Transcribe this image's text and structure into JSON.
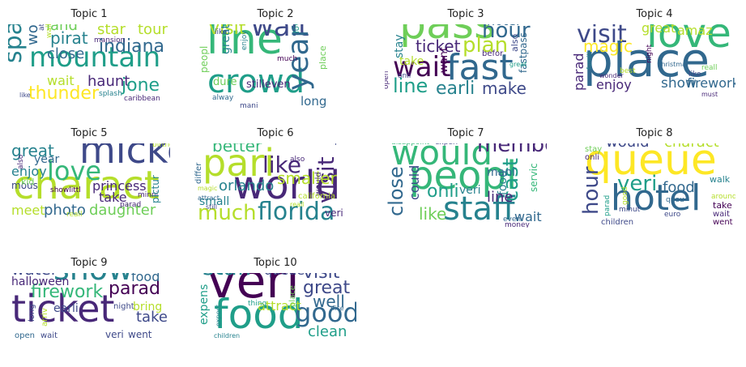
{
  "chart_data": {
    "type": "wordcloud",
    "palette": [
      "#440154",
      "#482878",
      "#3e4989",
      "#31688e",
      "#26828e",
      "#1f9e89",
      "#35b779",
      "#6ece58",
      "#b5de2b",
      "#fde725"
    ],
    "panels": [
      {
        "title": "Topic 1",
        "words": [
          {
            "text": "mountain",
            "color": "#1f9e89"
          },
          {
            "text": "space",
            "color": "#26828e"
          },
          {
            "text": "indiana",
            "color": "#31688e"
          },
          {
            "text": "pirat",
            "color": "#26828e"
          },
          {
            "text": "close",
            "color": "#31688e"
          },
          {
            "text": "land",
            "color": "#6ece58"
          },
          {
            "text": "star",
            "color": "#b5de2b"
          },
          {
            "text": "tour",
            "color": "#b5de2b"
          },
          {
            "text": "world",
            "color": "#31688e"
          },
          {
            "text": "wait",
            "color": "#b5de2b"
          },
          {
            "text": "haunt",
            "color": "#482878"
          },
          {
            "text": "jone",
            "color": "#1f9e89"
          },
          {
            "text": "thunder",
            "color": "#fde725"
          },
          {
            "text": "attract",
            "color": "#3e4989"
          },
          {
            "text": "mansion",
            "color": "#482878"
          },
          {
            "text": "small",
            "color": "#6ece58"
          },
          {
            "text": "splash",
            "color": "#26828e"
          },
          {
            "text": "caribbean",
            "color": "#482878"
          },
          {
            "text": "like",
            "color": "#3e4989"
          },
          {
            "text": "walk",
            "color": "#b5de2b"
          }
        ]
      },
      {
        "title": "Topic 2",
        "words": [
          {
            "text": "line",
            "color": "#35b779"
          },
          {
            "text": "crowd",
            "color": "#1f9e89"
          },
          {
            "text": "wait",
            "color": "#3e4989"
          },
          {
            "text": "year",
            "color": "#31688e"
          },
          {
            "text": "visit",
            "color": "#b5de2b"
          },
          {
            "text": "great",
            "color": "#26828e"
          },
          {
            "text": "would",
            "color": "#b5de2b"
          },
          {
            "text": "went",
            "color": "#482878"
          },
          {
            "text": "love",
            "color": "#1f9e89"
          },
          {
            "text": "place",
            "color": "#6ece58"
          },
          {
            "text": "peopl",
            "color": "#6ece58"
          },
          {
            "text": "like",
            "color": "#3e4989"
          },
          {
            "text": "enjoy",
            "color": "#26828e"
          },
          {
            "text": "much",
            "color": "#440154"
          },
          {
            "text": "dure",
            "color": "#6ece58"
          },
          {
            "text": "stilleven",
            "color": "#482878"
          },
          {
            "text": "alway",
            "color": "#31688e"
          },
          {
            "text": "mani",
            "color": "#3e4989"
          },
          {
            "text": "long",
            "color": "#31688e"
          }
        ]
      },
      {
        "title": "Topic 3",
        "words": [
          {
            "text": "pass",
            "color": "#6ece58"
          },
          {
            "text": "fast",
            "color": "#31688e"
          },
          {
            "text": "wait",
            "color": "#440154"
          },
          {
            "text": "hour",
            "color": "#31688e"
          },
          {
            "text": "plan",
            "color": "#b5de2b"
          },
          {
            "text": "ticket",
            "color": "#482878"
          },
          {
            "text": "line",
            "color": "#1f9e89"
          },
          {
            "text": "earli",
            "color": "#26828e"
          },
          {
            "text": "make",
            "color": "#3e4989"
          },
          {
            "text": "hotel",
            "color": "#31688e"
          },
          {
            "text": "stay",
            "color": "#26828e"
          },
          {
            "text": "take",
            "color": "#b5de2b"
          },
          {
            "text": "want",
            "color": "#440154"
          },
          {
            "text": "befor",
            "color": "#482878"
          },
          {
            "text": "fastpass",
            "color": "#31688e"
          },
          {
            "text": "also",
            "color": "#3e4989"
          },
          {
            "text": "great",
            "color": "#1f9e89"
          },
          {
            "text": "onli",
            "color": "#3e4989"
          },
          {
            "text": "open",
            "color": "#482878"
          }
        ]
      },
      {
        "title": "Topic 4",
        "words": [
          {
            "text": "place",
            "color": "#31688e"
          },
          {
            "text": "love",
            "color": "#35b779"
          },
          {
            "text": "visit",
            "color": "#3e4989"
          },
          {
            "text": "amaz",
            "color": "#b5de2b"
          },
          {
            "text": "great",
            "color": "#b5de2b"
          },
          {
            "text": "magic",
            "color": "#fde725"
          },
          {
            "text": "parad",
            "color": "#482878"
          },
          {
            "text": "enjoy",
            "color": "#482878"
          },
          {
            "text": "show",
            "color": "#31688e"
          },
          {
            "text": "firework",
            "color": "#31688e"
          },
          {
            "text": "experi",
            "color": "#fde725"
          },
          {
            "text": "everi",
            "color": "#6ece58"
          },
          {
            "text": "famili",
            "color": "#26828e"
          },
          {
            "text": "christma",
            "color": "#31688e"
          },
          {
            "text": "night",
            "color": "#440154"
          },
          {
            "text": "reall",
            "color": "#6ece58"
          },
          {
            "text": "wonder",
            "color": "#482878"
          },
          {
            "text": "best",
            "color": "#b5de2b"
          },
          {
            "text": "like",
            "color": "#3e4989"
          },
          {
            "text": "must",
            "color": "#482878"
          }
        ]
      },
      {
        "title": "Topic 5",
        "words": [
          {
            "text": "charact",
            "color": "#b5de2b"
          },
          {
            "text": "mickey",
            "color": "#3e4989"
          },
          {
            "text": "love",
            "color": "#35b779"
          },
          {
            "text": "great",
            "color": "#26828e"
          },
          {
            "text": "year",
            "color": "#31688e"
          },
          {
            "text": "enjoy",
            "color": "#26828e"
          },
          {
            "text": "mous",
            "color": "#3e4989"
          },
          {
            "text": "princess",
            "color": "#482878"
          },
          {
            "text": "take",
            "color": "#482878"
          },
          {
            "text": "meet",
            "color": "#b5de2b"
          },
          {
            "text": "photo",
            "color": "#31688e"
          },
          {
            "text": "daughter",
            "color": "#6ece58"
          },
          {
            "text": "birthday",
            "color": "#b5de2b"
          },
          {
            "text": "showlittl",
            "color": "#440154"
          },
          {
            "text": "minni",
            "color": "#482878"
          },
          {
            "text": "pictur",
            "color": "#26828e"
          },
          {
            "text": "parad",
            "color": "#482878"
          },
          {
            "text": "reall",
            "color": "#b5de2b"
          },
          {
            "text": "kid",
            "color": "#6ece58"
          },
          {
            "text": "also",
            "color": "#482878"
          }
        ]
      },
      {
        "title": "Topic 6",
        "words": [
          {
            "text": "world",
            "color": "#482878"
          },
          {
            "text": "pari",
            "color": "#b5de2b"
          },
          {
            "text": "florida",
            "color": "#26828e"
          },
          {
            "text": "much",
            "color": "#b5de2b"
          },
          {
            "text": "like",
            "color": "#482878"
          },
          {
            "text": "visit",
            "color": "#482878"
          },
          {
            "text": "better",
            "color": "#35b779"
          },
          {
            "text": "smaller",
            "color": "#b5de2b"
          },
          {
            "text": "orlando",
            "color": "#26828e"
          },
          {
            "text": "compar",
            "color": "#3e4989"
          },
          {
            "text": "differ",
            "color": "#31688e"
          },
          {
            "text": "also",
            "color": "#482878"
          },
          {
            "text": "would",
            "color": "#482878"
          },
          {
            "text": "small",
            "color": "#26828e"
          },
          {
            "text": "california",
            "color": "#b5de2b"
          },
          {
            "text": "attract",
            "color": "#31688e"
          },
          {
            "text": "magic",
            "color": "#b5de2b"
          },
          {
            "text": "still",
            "color": "#3e4989"
          },
          {
            "text": "reall",
            "color": "#b5de2b"
          },
          {
            "text": "veri",
            "color": "#482878"
          }
        ]
      },
      {
        "title": "Topic 7",
        "words": [
          {
            "text": "would",
            "color": "#35b779"
          },
          {
            "text": "peopl",
            "color": "#35b779"
          },
          {
            "text": "staff",
            "color": "#26828e"
          },
          {
            "text": "member",
            "color": "#482878"
          },
          {
            "text": "close",
            "color": "#31688e"
          },
          {
            "text": "could",
            "color": "#3e4989"
          },
          {
            "text": "onli",
            "color": "#1f9e89"
          },
          {
            "text": "like",
            "color": "#6ece58"
          },
          {
            "text": "cast",
            "color": "#1f9e89"
          },
          {
            "text": "food",
            "color": "#26828e"
          },
          {
            "text": "line",
            "color": "#482878"
          },
          {
            "text": "veri",
            "color": "#26828e"
          },
          {
            "text": "mani",
            "color": "#31688e"
          },
          {
            "text": "servic",
            "color": "#35b779"
          },
          {
            "text": "wait",
            "color": "#31688e"
          },
          {
            "text": "disappoint",
            "color": "#35b779"
          },
          {
            "text": "experi",
            "color": "#3e4989"
          },
          {
            "text": "told",
            "color": "#482878"
          },
          {
            "text": "even",
            "color": "#31688e"
          },
          {
            "text": "money",
            "color": "#482878"
          }
        ]
      },
      {
        "title": "Topic 8",
        "words": [
          {
            "text": "queue",
            "color": "#fde725"
          },
          {
            "text": "hotel",
            "color": "#31688e"
          },
          {
            "text": "veri",
            "color": "#1f9e89"
          },
          {
            "text": "food",
            "color": "#31688e"
          },
          {
            "text": "hour",
            "color": "#3e4989"
          },
          {
            "text": "would",
            "color": "#3e4989"
          },
          {
            "text": "charact",
            "color": "#b5de2b"
          },
          {
            "text": "stay",
            "color": "#6ece58"
          },
          {
            "text": "onli",
            "color": "#482878"
          },
          {
            "text": "walk",
            "color": "#26828e"
          },
          {
            "text": "around",
            "color": "#b5de2b"
          },
          {
            "text": "take",
            "color": "#440154"
          },
          {
            "text": "wait",
            "color": "#482878"
          },
          {
            "text": "went",
            "color": "#440154"
          },
          {
            "text": "good",
            "color": "#b5de2b"
          },
          {
            "text": "parad",
            "color": "#1f9e89"
          },
          {
            "text": "queu",
            "color": "#31688e"
          },
          {
            "text": "minut",
            "color": "#3e4989"
          },
          {
            "text": "euro",
            "color": "#3e4989"
          },
          {
            "text": "children",
            "color": "#3e4989"
          }
        ]
      },
      {
        "title": "Topic 9",
        "words": [
          {
            "text": "ticket",
            "color": "#482878"
          },
          {
            "text": "show",
            "color": "#26828e"
          },
          {
            "text": "firework",
            "color": "#35b779"
          },
          {
            "text": "parad",
            "color": "#440154"
          },
          {
            "text": "water",
            "color": "#3e4989"
          },
          {
            "text": "line",
            "color": "#3e4989"
          },
          {
            "text": "train",
            "color": "#b5de2b"
          },
          {
            "text": "befor",
            "color": "#3e4989"
          },
          {
            "text": "food",
            "color": "#31688e"
          },
          {
            "text": "halloween",
            "color": "#482878"
          },
          {
            "text": "earli",
            "color": "#3e4989"
          },
          {
            "text": "night",
            "color": "#3e4989"
          },
          {
            "text": "bring",
            "color": "#b5de2b"
          },
          {
            "text": "take",
            "color": "#3e4989"
          },
          {
            "text": "long",
            "color": "#3e4989"
          },
          {
            "text": "arriv",
            "color": "#b5de2b"
          },
          {
            "text": "open",
            "color": "#31688e"
          },
          {
            "text": "wait",
            "color": "#3e4989"
          },
          {
            "text": "veri",
            "color": "#3e4989"
          },
          {
            "text": "went",
            "color": "#3e4989"
          }
        ]
      },
      {
        "title": "Topic 10",
        "words": [
          {
            "text": "veri",
            "color": "#440154"
          },
          {
            "text": "food",
            "color": "#1f9e89"
          },
          {
            "text": "staff",
            "color": "#26828e"
          },
          {
            "text": "good",
            "color": "#31688e"
          },
          {
            "text": "visit",
            "color": "#3e4989"
          },
          {
            "text": "great",
            "color": "#3e4989"
          },
          {
            "text": "well",
            "color": "#31688e"
          },
          {
            "text": "clean",
            "color": "#1f9e89"
          },
          {
            "text": "attract",
            "color": "#b5de2b"
          },
          {
            "text": "queue",
            "color": "#3e4989"
          },
          {
            "text": "friendli",
            "color": "#6ece58"
          },
          {
            "text": "expens",
            "color": "#1f9e89"
          },
          {
            "text": "price",
            "color": "#3e4989"
          },
          {
            "text": "help",
            "color": "#482878"
          },
          {
            "text": "hongkong",
            "color": "#26828e"
          },
          {
            "text": "place",
            "color": "#6ece58"
          },
          {
            "text": "nice",
            "color": "#31688e"
          },
          {
            "text": "expect",
            "color": "#26828e"
          },
          {
            "text": "children",
            "color": "#26828e"
          },
          {
            "text": "thing",
            "color": "#1f9e89"
          }
        ]
      }
    ]
  }
}
